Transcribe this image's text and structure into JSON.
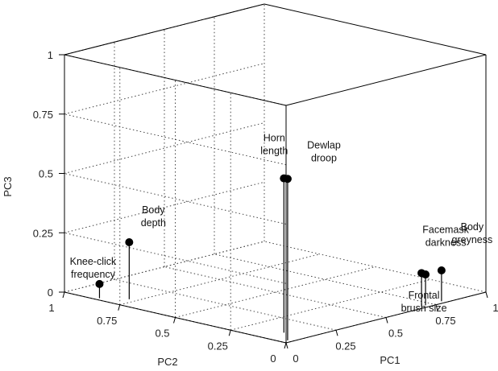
{
  "chart_data": {
    "type": "scatter3d-stem",
    "title": "",
    "xlabel": "PC1",
    "ylabel": "PC2",
    "zlabel": "PC3",
    "xlim": [
      0,
      1
    ],
    "ylim": [
      0,
      1
    ],
    "zlim": [
      0,
      1
    ],
    "grid": true,
    "x_ticks": [
      "0",
      "0.25",
      "0.5",
      "0.75",
      "1"
    ],
    "y_ticks": [
      "0",
      "0.25",
      "0.5",
      "0.75",
      "1"
    ],
    "z_ticks": [
      "0",
      "0.25",
      "0.5",
      "0.75",
      "1"
    ],
    "points": [
      {
        "label": [
          "Knee-click",
          "frequency"
        ],
        "x": 0.02,
        "y": 0.86,
        "z": 0.06
      },
      {
        "label": [
          "Body",
          "depth"
        ],
        "x": 0.08,
        "y": 0.78,
        "z": 0.24
      },
      {
        "label": [
          "Horn",
          "length"
        ],
        "x": 0.1,
        "y": 0.1,
        "z": 0.65
      },
      {
        "label": [
          "Dewlap",
          "droop"
        ],
        "x": 0.03,
        "y": 0.02,
        "z": 0.68
      },
      {
        "label": [
          "Facemask",
          "darkness"
        ],
        "x": 0.7,
        "y": 0.02,
        "z": 0.14
      },
      {
        "label": [
          "Frontal",
          "brush size"
        ],
        "x": 0.72,
        "y": 0.02,
        "z": 0.13
      },
      {
        "label": [
          "Body",
          "greyness"
        ],
        "x": 0.8,
        "y": 0.02,
        "z": 0.13
      }
    ]
  }
}
